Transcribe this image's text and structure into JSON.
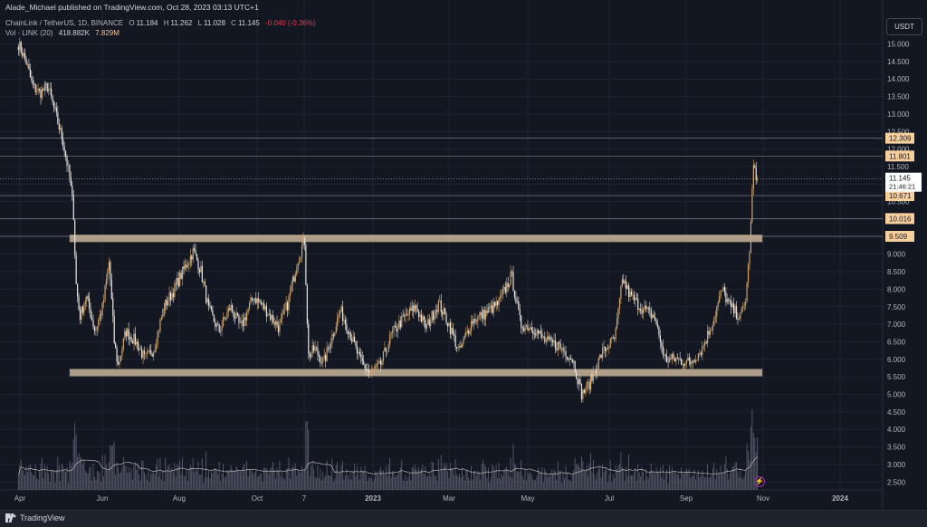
{
  "header": {
    "published_line": "Alade_Michael published on TradingView.com, Oct 28, 2023 03:13 UTC+1",
    "symbol_line": "ChainLink / TetherUS, 1D, BINANCE",
    "open_label": "O",
    "open_value": "11.184",
    "high_label": "H",
    "high_value": "11.262",
    "low_label": "L",
    "low_value": "11.028",
    "close_label": "C",
    "close_value": "11.145",
    "change_value": "-0.040 (-0.36%)",
    "volume_line": "Vol · LINK (20)",
    "volume_ma": "418.882K",
    "volume_value": "7.829M"
  },
  "currency_button": "USDT",
  "footer": {
    "brand": "TradingView"
  },
  "colors": {
    "background": "#131722",
    "candle": "#d1a46a",
    "candle_dark": "#e8e6e1",
    "zone": "#c9b49a",
    "grid": "#1f2330",
    "volume": "#6f7282",
    "label_bg": "#f7cf9d",
    "price_bg": "#ffffff"
  },
  "chart_data": {
    "type": "candlestick",
    "title": "ChainLink / TetherUS, 1D, BINANCE",
    "y_ticks": [
      "15.000",
      "14.500",
      "14.000",
      "13.500",
      "13.000",
      "12.500",
      "12.000",
      "11.500",
      "11.000",
      "10.500",
      "10.000",
      "9.500",
      "9.000",
      "8.500",
      "8.000",
      "7.500",
      "7.000",
      "6.500",
      "6.000",
      "5.500",
      "5.000",
      "4.500",
      "4.000",
      "3.500",
      "3.000",
      "2.500"
    ],
    "ylim": [
      2.3,
      15.5
    ],
    "x_ticks": [
      "Apr",
      "Jun",
      "Aug",
      "Oct",
      "7",
      "2023",
      "Mar",
      "May",
      "Jul",
      "Sep",
      "Nov",
      "2024"
    ],
    "horizontal_levels": [
      {
        "value": 12.309,
        "label": "12.309"
      },
      {
        "value": 11.801,
        "label": "11.801"
      },
      {
        "value": 10.671,
        "label": "10.671"
      },
      {
        "value": 10.016,
        "label": "10.016"
      },
      {
        "value": 9.509,
        "label": "9.509"
      }
    ],
    "current_price": {
      "value": 11.145,
      "label": "11.145",
      "countdown": "21:46:21"
    },
    "zones": [
      {
        "name": "resistance",
        "from": 9.35,
        "to": 9.55
      },
      {
        "name": "support",
        "from": 5.52,
        "to": 5.72
      }
    ],
    "price_path": [
      [
        "2022-03-28",
        15.0
      ],
      [
        "2022-04-03",
        14.5
      ],
      [
        "2022-04-08",
        13.8
      ],
      [
        "2022-04-14",
        13.6
      ],
      [
        "2022-04-20",
        13.8
      ],
      [
        "2022-04-26",
        13.0
      ],
      [
        "2022-05-02",
        12.2
      ],
      [
        "2022-05-07",
        11.2
      ],
      [
        "2022-05-10",
        10.3
      ],
      [
        "2022-05-12",
        8.2
      ],
      [
        "2022-05-15",
        7.2
      ],
      [
        "2022-05-20",
        7.8
      ],
      [
        "2022-05-27",
        6.8
      ],
      [
        "2022-06-02",
        7.5
      ],
      [
        "2022-06-07",
        8.8
      ],
      [
        "2022-06-11",
        6.5
      ],
      [
        "2022-06-14",
        5.8
      ],
      [
        "2022-06-20",
        6.8
      ],
      [
        "2022-06-28",
        6.5
      ],
      [
        "2022-07-05",
        6.0
      ],
      [
        "2022-07-12",
        6.3
      ],
      [
        "2022-07-20",
        7.5
      ],
      [
        "2022-07-28",
        8.0
      ],
      [
        "2022-08-05",
        8.6
      ],
      [
        "2022-08-12",
        9.1
      ],
      [
        "2022-08-18",
        8.5
      ],
      [
        "2022-08-24",
        7.4
      ],
      [
        "2022-09-01",
        6.8
      ],
      [
        "2022-09-10",
        7.5
      ],
      [
        "2022-09-18",
        6.9
      ],
      [
        "2022-09-28",
        7.8
      ],
      [
        "2022-10-08",
        7.4
      ],
      [
        "2022-10-18",
        6.9
      ],
      [
        "2022-10-25",
        7.6
      ],
      [
        "2022-11-02",
        8.9
      ],
      [
        "2022-11-07",
        9.4
      ],
      [
        "2022-11-10",
        6.1
      ],
      [
        "2022-11-15",
        6.3
      ],
      [
        "2022-11-22",
        5.9
      ],
      [
        "2022-11-28",
        6.6
      ],
      [
        "2022-12-05",
        7.4
      ],
      [
        "2022-12-12",
        6.8
      ],
      [
        "2022-12-20",
        6.0
      ],
      [
        "2022-12-28",
        5.6
      ],
      [
        "2023-01-05",
        5.8
      ],
      [
        "2023-01-14",
        6.7
      ],
      [
        "2023-01-22",
        7.1
      ],
      [
        "2023-02-02",
        7.5
      ],
      [
        "2023-02-10",
        6.9
      ],
      [
        "2023-02-20",
        7.6
      ],
      [
        "2023-02-28",
        7.0
      ],
      [
        "2023-03-08",
        6.2
      ],
      [
        "2023-03-18",
        7.1
      ],
      [
        "2023-03-28",
        7.3
      ],
      [
        "2023-04-08",
        7.6
      ],
      [
        "2023-04-18",
        8.4
      ],
      [
        "2023-04-25",
        7.0
      ],
      [
        "2023-05-05",
        6.9
      ],
      [
        "2023-05-15",
        6.5
      ],
      [
        "2023-05-25",
        6.4
      ],
      [
        "2023-06-05",
        6.0
      ],
      [
        "2023-06-12",
        5.0
      ],
      [
        "2023-06-18",
        5.3
      ],
      [
        "2023-06-28",
        6.2
      ],
      [
        "2023-07-08",
        6.6
      ],
      [
        "2023-07-14",
        8.3
      ],
      [
        "2023-07-20",
        7.8
      ],
      [
        "2023-07-28",
        7.5
      ],
      [
        "2023-08-08",
        7.2
      ],
      [
        "2023-08-16",
        6.0
      ],
      [
        "2023-08-25",
        6.0
      ],
      [
        "2023-09-05",
        5.9
      ],
      [
        "2023-09-14",
        6.3
      ],
      [
        "2023-09-22",
        7.0
      ],
      [
        "2023-09-30",
        8.0
      ],
      [
        "2023-10-06",
        7.5
      ],
      [
        "2023-10-14",
        7.2
      ],
      [
        "2023-10-18",
        7.6
      ],
      [
        "2023-10-21",
        8.9
      ],
      [
        "2023-10-23",
        10.2
      ],
      [
        "2023-10-24",
        11.6
      ],
      [
        "2023-10-26",
        11.2
      ],
      [
        "2023-10-28",
        11.145
      ]
    ]
  }
}
